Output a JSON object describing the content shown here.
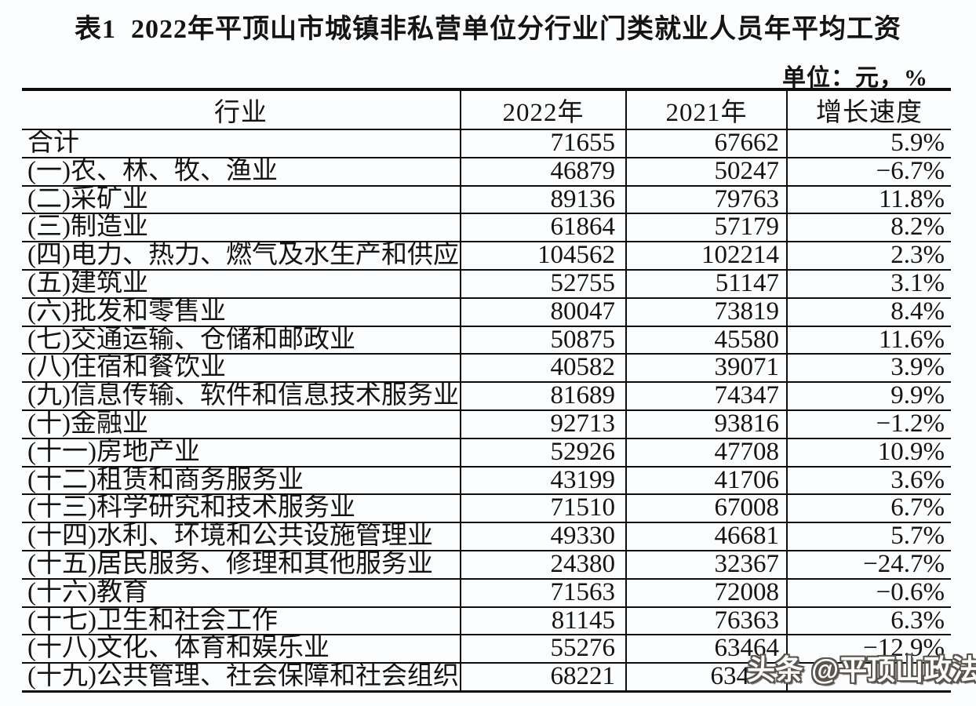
{
  "page": {
    "title": "表1  2022年平顶山市城镇非私营单位分行业门类就业人员年平均工资",
    "unit_label": "单位：元，%"
  },
  "table": {
    "columns": [
      "行业",
      "2022年",
      "2021年",
      "增长速度"
    ],
    "rows": [
      {
        "industry": "合计",
        "y2022": "71655",
        "y2021": "67662",
        "growth": "5.9%"
      },
      {
        "industry": "(一)农、林、牧、渔业",
        "y2022": "46879",
        "y2021": "50247",
        "growth": "−6.7%"
      },
      {
        "industry": "(二)采矿业",
        "y2022": "89136",
        "y2021": "79763",
        "growth": "11.8%"
      },
      {
        "industry": "(三)制造业",
        "y2022": "61864",
        "y2021": "57179",
        "growth": "8.2%"
      },
      {
        "industry": "(四)电力、热力、燃气及水生产和供应业",
        "y2022": "104562",
        "y2021": "102214",
        "growth": "2.3%"
      },
      {
        "industry": "(五)建筑业",
        "y2022": "52755",
        "y2021": "51147",
        "growth": "3.1%"
      },
      {
        "industry": "(六)批发和零售业",
        "y2022": "80047",
        "y2021": "73819",
        "growth": "8.4%"
      },
      {
        "industry": "(七)交通运输、仓储和邮政业",
        "y2022": "50875",
        "y2021": "45580",
        "growth": "11.6%"
      },
      {
        "industry": "(八)住宿和餐饮业",
        "y2022": "40582",
        "y2021": "39071",
        "growth": "3.9%"
      },
      {
        "industry": "(九)信息传输、软件和信息技术服务业",
        "y2022": "81689",
        "y2021": "74347",
        "growth": "9.9%"
      },
      {
        "industry": "(十)金融业",
        "y2022": "92713",
        "y2021": "93816",
        "growth": "−1.2%"
      },
      {
        "industry": "(十一)房地产业",
        "y2022": "52926",
        "y2021": "47708",
        "growth": "10.9%"
      },
      {
        "industry": "(十二)租赁和商务服务业",
        "y2022": "43199",
        "y2021": "41706",
        "growth": "3.6%"
      },
      {
        "industry": "(十三)科学研究和技术服务业",
        "y2022": "71510",
        "y2021": "67008",
        "growth": "6.7%"
      },
      {
        "industry": "(十四)水利、环境和公共设施管理业",
        "y2022": "49330",
        "y2021": "46681",
        "growth": "5.7%"
      },
      {
        "industry": "(十五)居民服务、修理和其他服务业",
        "y2022": "24380",
        "y2021": "32367",
        "growth": "−24.7%"
      },
      {
        "industry": "(十六)教育",
        "y2022": "71563",
        "y2021": "72008",
        "growth": "−0.6%"
      },
      {
        "industry": "(十七)卫生和社会工作",
        "y2022": "81145",
        "y2021": "76363",
        "growth": "6.3%"
      },
      {
        "industry": "(十八)文化、体育和娱乐业",
        "y2022": "55276",
        "y2021": "63464",
        "growth": "−12.9%"
      },
      {
        "industry": "(十九)公共管理、社会保障和社会组织",
        "y2022": "68221",
        "y2021": "634",
        "growth": ""
      }
    ]
  },
  "watermark": {
    "text": "头条 @平顶山政法"
  }
}
